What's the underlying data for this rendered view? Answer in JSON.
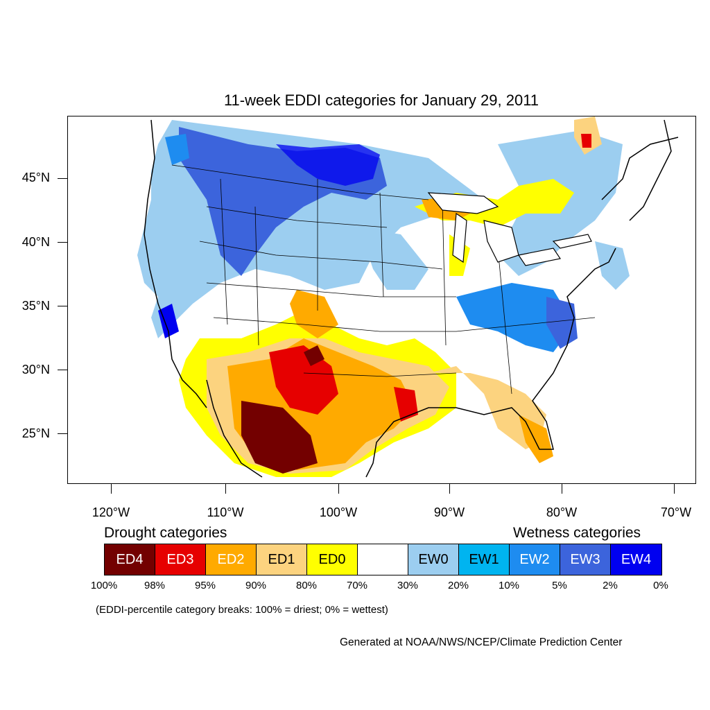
{
  "title": "11-week EDDI categories for January 29, 2011",
  "lat_labels": [
    "45°N",
    "40°N",
    "35°N",
    "30°N",
    "25°N"
  ],
  "lon_labels": [
    "120°W",
    "110°W",
    "100°W",
    "90°W",
    "80°W",
    "70°W"
  ],
  "legend": {
    "drought_heading": "Drought categories",
    "wetness_heading": "Wetness categories",
    "categories": [
      {
        "label": "ED4",
        "color": "#730000",
        "text_color": "#ffffff"
      },
      {
        "label": "ED3",
        "color": "#e60000",
        "text_color": "#ffffff"
      },
      {
        "label": "ED2",
        "color": "#ffaa00",
        "text_color": "#ffffff"
      },
      {
        "label": "ED1",
        "color": "#fcd37f",
        "text_color": "#000000"
      },
      {
        "label": "ED0",
        "color": "#ffff00",
        "text_color": "#000000"
      },
      {
        "label": "",
        "color": "#ffffff",
        "text_color": "#000000"
      },
      {
        "label": "EW0",
        "color": "#9ccef0",
        "text_color": "#000000"
      },
      {
        "label": "EW1",
        "color": "#00b4f0",
        "text_color": "#000000"
      },
      {
        "label": "EW2",
        "color": "#1e8cf0",
        "text_color": "#ffffff"
      },
      {
        "label": "EW3",
        "color": "#3c64dc",
        "text_color": "#ffffff"
      },
      {
        "label": "EW4",
        "color": "#0000f0",
        "text_color": "#ffffff"
      }
    ],
    "percentiles": [
      "100%",
      "98%",
      "95%",
      "90%",
      "80%",
      "70%",
      "30%",
      "20%",
      "10%",
      "5%",
      "2%",
      "0%"
    ]
  },
  "note": "(EDDI-percentile category breaks: 100% = driest; 0% = wettest)",
  "credit": "Generated at NOAA/NWS/NCEP/Climate Prediction Center"
}
